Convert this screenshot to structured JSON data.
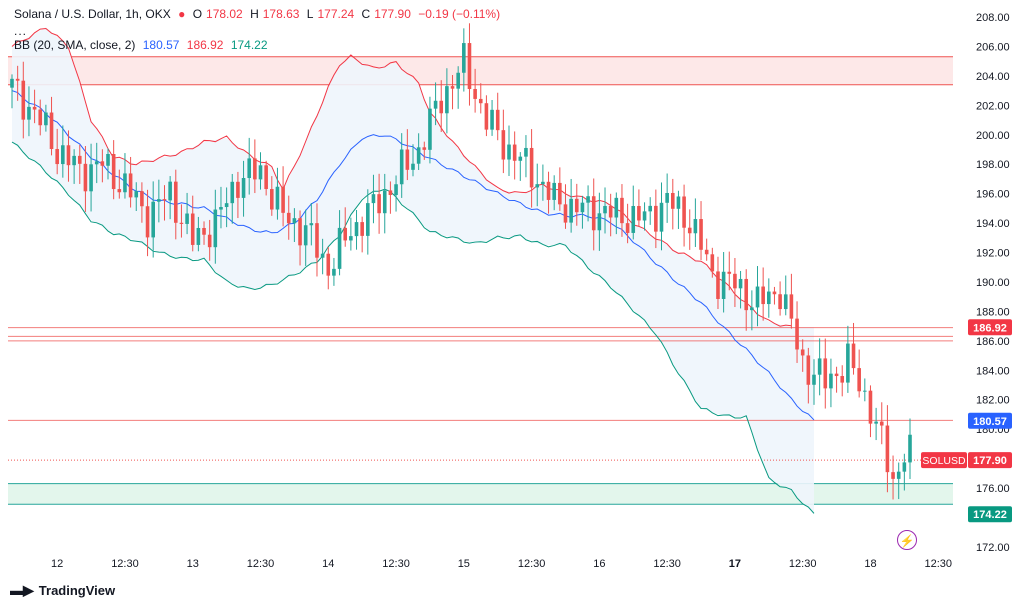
{
  "legend": {
    "symbol_line": "Solana / U.S. Dollar, 1h, OKX",
    "open_label": "O",
    "open": "178.02",
    "high_label": "H",
    "high": "178.63",
    "low_label": "L",
    "low": "177.24",
    "close_label": "C",
    "close": "177.90",
    "change": "−0.19 (−0.11%)",
    "more": "...",
    "bb_label": "BB (20, SMA, close, 2)",
    "bb_middle": "180.57",
    "bb_upper": "186.92",
    "bb_lower": "174.22"
  },
  "footer": {
    "brand": "TradingView",
    "logo_icon": "tradingview-logo-icon"
  },
  "colors": {
    "up": "#26a69a",
    "down": "#ef5350",
    "bb_upper": "#f23645",
    "bb_middle": "#2962ff",
    "bb_lower": "#089981",
    "band_fill": "#eef5fc",
    "axis_text": "#131722"
  },
  "chart_data": {
    "type": "candlestick",
    "title": "Solana / U.S. Dollar, 1h, OKX",
    "ylim": [
      172,
      208
    ],
    "y_ticks": [
      172,
      174,
      176,
      178,
      180,
      182,
      184,
      186,
      188,
      190,
      192,
      194,
      196,
      198,
      200,
      202,
      204,
      206,
      208
    ],
    "x_ticks": [
      "12",
      "12:30",
      "13",
      "12:30",
      "14",
      "12:30",
      "15",
      "12:30",
      "16",
      "12:30",
      "17",
      "12:30",
      "18",
      "12:30"
    ],
    "x_tick_index": [
      8,
      20,
      32,
      44,
      56,
      68,
      80,
      92,
      104,
      116,
      128,
      140,
      152,
      164
    ],
    "candle_count": 160,
    "zones": [
      {
        "type": "resistance",
        "from": 203.4,
        "to": 205.3
      },
      {
        "type": "support",
        "from": 174.9,
        "to": 176.3
      }
    ],
    "horizontal_lines": [
      186.9,
      186.3,
      186.0,
      180.6,
      177.9
    ],
    "price_labels": [
      {
        "text": "186.92",
        "value": 186.92,
        "color": "#f23645"
      },
      {
        "text": "180.57",
        "value": 180.57,
        "color": "#2962ff"
      },
      {
        "text": "177.90",
        "value": 177.9,
        "color": "#f23645",
        "prefix": "SOLUSD"
      },
      {
        "text": "174.22",
        "value": 174.22,
        "color": "#089981"
      }
    ],
    "close_path": [
      [
        0,
        203.2
      ],
      [
        4,
        201.5
      ],
      [
        8,
        199.0
      ],
      [
        12,
        197.5
      ],
      [
        16,
        198.0
      ],
      [
        20,
        196.5
      ],
      [
        24,
        194.5
      ],
      [
        28,
        196.0
      ],
      [
        32,
        192.8
      ],
      [
        36,
        194.0
      ],
      [
        40,
        197.0
      ],
      [
        44,
        197.5
      ],
      [
        48,
        194.5
      ],
      [
        52,
        193.5
      ],
      [
        56,
        191.0
      ],
      [
        60,
        193.5
      ],
      [
        64,
        195.0
      ],
      [
        68,
        197.0
      ],
      [
        72,
        199.0
      ],
      [
        76,
        202.5
      ],
      [
        80,
        204.8
      ],
      [
        84,
        201.0
      ],
      [
        88,
        199.0
      ],
      [
        92,
        197.5
      ],
      [
        96,
        195.5
      ],
      [
        100,
        195.0
      ],
      [
        104,
        194.8
      ],
      [
        108,
        194.5
      ],
      [
        112,
        194.3
      ],
      [
        116,
        195.5
      ],
      [
        120,
        194.2
      ],
      [
        124,
        190.5
      ],
      [
        128,
        189.8
      ],
      [
        132,
        188.5
      ],
      [
        136,
        189.5
      ],
      [
        140,
        184.5
      ],
      [
        144,
        183.2
      ],
      [
        148,
        184.6
      ],
      [
        152,
        181.5
      ],
      [
        156,
        176.5
      ],
      [
        158,
        178.5
      ],
      [
        160,
        177.9
      ]
    ],
    "bb_upper_path": [
      [
        0,
        206.0
      ],
      [
        6,
        207.3
      ],
      [
        10,
        206.0
      ],
      [
        14,
        201.0
      ],
      [
        18,
        198.5
      ],
      [
        22,
        198.0
      ],
      [
        26,
        198.4
      ],
      [
        30,
        198.8
      ],
      [
        34,
        199.5
      ],
      [
        38,
        199.8
      ],
      [
        42,
        198.6
      ],
      [
        46,
        197.8
      ],
      [
        48,
        196.3
      ],
      [
        52,
        199.5
      ],
      [
        56,
        203.2
      ],
      [
        58,
        204.8
      ],
      [
        60,
        205.3
      ],
      [
        64,
        204.5
      ],
      [
        68,
        204.9
      ],
      [
        72,
        203.5
      ],
      [
        74,
        201.5
      ],
      [
        78,
        199.5
      ],
      [
        82,
        197.8
      ],
      [
        86,
        196.3
      ],
      [
        90,
        196.0
      ],
      [
        94,
        196.6
      ],
      [
        98,
        196.0
      ],
      [
        102,
        195.6
      ],
      [
        106,
        195.3
      ],
      [
        110,
        194.0
      ],
      [
        114,
        193.0
      ],
      [
        118,
        192.0
      ],
      [
        122,
        191.4
      ],
      [
        126,
        190.0
      ],
      [
        130,
        188.5
      ],
      [
        134,
        187.3
      ],
      [
        138,
        186.92
      ]
    ],
    "bb_middle_path": [
      [
        0,
        203.0
      ],
      [
        6,
        201.5
      ],
      [
        10,
        200.0
      ],
      [
        14,
        198.5
      ],
      [
        18,
        197.3
      ],
      [
        22,
        196.2
      ],
      [
        26,
        195.5
      ],
      [
        30,
        195.3
      ],
      [
        34,
        195.0
      ],
      [
        38,
        194.3
      ],
      [
        42,
        193.6
      ],
      [
        46,
        193.3
      ],
      [
        50,
        194.0
      ],
      [
        54,
        195.6
      ],
      [
        58,
        198.0
      ],
      [
        62,
        199.8
      ],
      [
        66,
        200.0
      ],
      [
        70,
        199.3
      ],
      [
        74,
        198.4
      ],
      [
        78,
        197.6
      ],
      [
        82,
        196.8
      ],
      [
        86,
        196.0
      ],
      [
        90,
        195.3
      ],
      [
        94,
        194.7
      ],
      [
        98,
        194.5
      ],
      [
        102,
        194.5
      ],
      [
        106,
        194.1
      ],
      [
        110,
        192.8
      ],
      [
        114,
        191.3
      ],
      [
        118,
        189.9
      ],
      [
        122,
        188.6
      ],
      [
        126,
        186.9
      ],
      [
        130,
        185.4
      ],
      [
        134,
        183.8
      ],
      [
        138,
        182.0
      ],
      [
        142,
        180.57
      ]
    ],
    "bb_lower_path": [
      [
        0,
        199.5
      ],
      [
        6,
        197.5
      ],
      [
        10,
        196.0
      ],
      [
        14,
        194.2
      ],
      [
        18,
        193.3
      ],
      [
        22,
        192.8
      ],
      [
        26,
        192.0
      ],
      [
        30,
        191.6
      ],
      [
        34,
        191.5
      ],
      [
        38,
        190.0
      ],
      [
        42,
        189.5
      ],
      [
        46,
        189.8
      ],
      [
        50,
        190.5
      ],
      [
        54,
        191.4
      ],
      [
        58,
        193.2
      ],
      [
        62,
        195.7
      ],
      [
        66,
        196.4
      ],
      [
        70,
        195.0
      ],
      [
        74,
        193.4
      ],
      [
        78,
        193.0
      ],
      [
        82,
        192.6
      ],
      [
        86,
        193.0
      ],
      [
        90,
        193.1
      ],
      [
        94,
        192.5
      ],
      [
        98,
        192.5
      ],
      [
        102,
        191.0
      ],
      [
        106,
        189.7
      ],
      [
        110,
        188.1
      ],
      [
        114,
        186.5
      ],
      [
        118,
        183.8
      ],
      [
        122,
        181.4
      ],
      [
        126,
        180.9
      ],
      [
        130,
        180.8
      ],
      [
        134,
        176.6
      ],
      [
        138,
        175.8
      ],
      [
        142,
        174.22
      ]
    ]
  }
}
